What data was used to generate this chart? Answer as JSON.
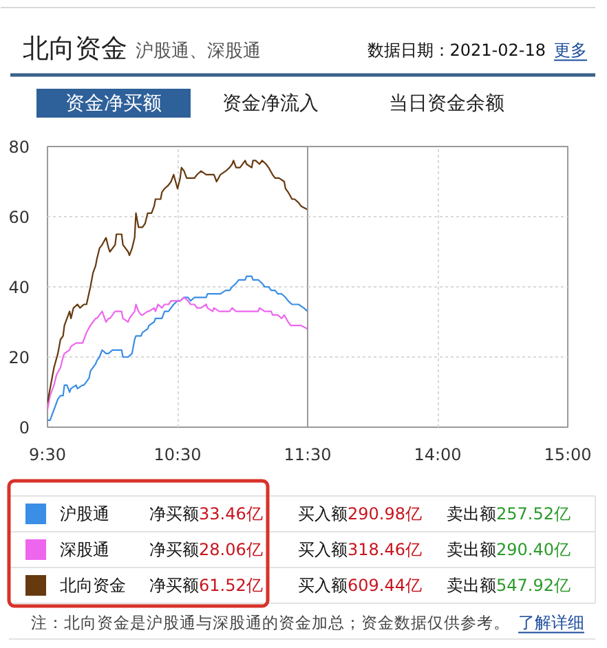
{
  "chart_data": [
    {
      "type": "line",
      "title": "北向资金",
      "subtitle": "沪股通、深股通",
      "xlim": [
        9.5,
        11.5
      ],
      "xticks": [
        {
          "value": 9.5,
          "label": "9:30"
        },
        {
          "value": 10.5,
          "label": "10:30"
        },
        {
          "value": 11.5,
          "label": "11:30"
        }
      ],
      "ylim": [
        0,
        80
      ],
      "yticks": [
        0,
        20,
        40,
        60,
        80
      ],
      "grid": true,
      "legend": "bottom",
      "series": [
        {
          "name": "沪股通",
          "color": "#3a8ee6",
          "x": [
            9.5,
            9.52,
            9.53,
            9.55,
            9.58,
            9.6,
            9.62,
            9.63,
            9.65,
            9.67,
            9.68,
            9.72,
            9.73,
            9.77,
            9.78,
            9.82,
            9.83,
            9.87,
            9.88,
            9.9,
            9.92,
            9.95,
            9.97,
            10,
            10.02,
            10.05,
            10.07,
            10.08,
            10.12,
            10.15,
            10.17,
            10.18,
            10.22,
            10.23,
            10.27,
            10.28,
            10.32,
            10.33,
            10.35,
            10.38,
            10.4,
            10.43,
            10.45,
            10.47,
            10.5,
            10.52,
            10.55,
            10.58,
            10.6,
            10.63,
            10.65,
            10.68,
            10.72,
            10.73,
            10.77,
            10.78,
            10.82,
            10.83,
            10.87,
            10.9,
            10.92,
            10.95,
            10.97,
            11,
            11.02,
            11.03,
            11.07,
            11.08,
            11.12,
            11.15,
            11.17,
            11.2,
            11.22,
            11.25,
            11.27,
            11.3,
            11.33,
            11.35,
            11.38,
            11.4,
            11.43,
            11.47,
            11.5
          ],
          "values": [
            2,
            2,
            3,
            5,
            8,
            9,
            9,
            12,
            12,
            10,
            11,
            12,
            11,
            12,
            12,
            14,
            16,
            18,
            19,
            20,
            22,
            21,
            21,
            22,
            22,
            22,
            22,
            20,
            20,
            21,
            25,
            26,
            26,
            27,
            28,
            29,
            30,
            31,
            31,
            31,
            33,
            33,
            34,
            35,
            36,
            36,
            37,
            37,
            36,
            37,
            37,
            37,
            37,
            38,
            38,
            38,
            38,
            38,
            39,
            39,
            40,
            41,
            42,
            42,
            42,
            43,
            43,
            42,
            42,
            41,
            40,
            40,
            39,
            39,
            38,
            38,
            37,
            36,
            35,
            35,
            35,
            34,
            33
          ]
        },
        {
          "name": "深股通",
          "color": "#ee66ee",
          "x": [
            9.5,
            9.52,
            9.55,
            9.57,
            9.6,
            9.62,
            9.63,
            9.67,
            9.68,
            9.72,
            9.73,
            9.77,
            9.78,
            9.8,
            9.83,
            9.85,
            9.87,
            9.88,
            9.9,
            9.92,
            9.95,
            9.97,
            9.98,
            10.02,
            10.03,
            10.07,
            10.08,
            10.12,
            10.13,
            10.17,
            10.18,
            10.2,
            10.22,
            10.23,
            10.27,
            10.28,
            10.32,
            10.33,
            10.35,
            10.38,
            10.4,
            10.43,
            10.45,
            10.47,
            10.5,
            10.52,
            10.55,
            10.58,
            10.6,
            10.63,
            10.65,
            10.68,
            10.72,
            10.73,
            10.77,
            10.78,
            10.82,
            10.83,
            10.87,
            10.9,
            10.92,
            10.95,
            10.97,
            11,
            11.03,
            11.05,
            11.08,
            11.12,
            11.13,
            11.17,
            11.18,
            11.22,
            11.23,
            11.27,
            11.3,
            11.32,
            11.35,
            11.37,
            11.4,
            11.43,
            11.45,
            11.5
          ],
          "values": [
            5,
            9,
            12,
            15,
            17,
            20,
            21,
            22,
            23,
            24,
            24,
            24,
            25,
            27,
            29,
            30,
            31,
            31,
            32,
            33,
            30,
            31,
            31,
            33,
            33,
            33,
            31,
            30,
            31,
            33,
            35,
            33,
            32,
            32,
            33,
            33,
            34,
            33,
            35,
            34,
            35,
            35,
            36,
            36,
            36,
            36,
            37,
            36,
            35,
            35,
            34,
            34,
            35,
            34,
            33,
            34,
            33,
            33,
            33,
            33,
            34,
            33,
            33,
            33,
            33,
            33,
            33,
            33,
            34,
            33,
            33,
            33,
            32,
            32,
            31,
            32,
            30,
            29,
            29,
            29,
            29,
            28
          ]
        },
        {
          "name": "北向资金",
          "color": "#66390f",
          "x": [
            9.5,
            9.53,
            9.55,
            9.58,
            9.6,
            9.62,
            9.63,
            9.65,
            9.67,
            9.68,
            9.7,
            9.73,
            9.75,
            9.78,
            9.8,
            9.83,
            9.85,
            9.87,
            9.88,
            9.9,
            9.92,
            9.95,
            9.97,
            9.98,
            10.02,
            10.03,
            10.07,
            10.08,
            10.12,
            10.13,
            10.15,
            10.17,
            10.18,
            10.2,
            10.23,
            10.25,
            10.27,
            10.3,
            10.32,
            10.33,
            10.35,
            10.37,
            10.38,
            10.4,
            10.43,
            10.45,
            10.47,
            10.5,
            10.52,
            10.53,
            10.55,
            10.57,
            10.6,
            10.63,
            10.65,
            10.68,
            10.72,
            10.75,
            10.78,
            10.8,
            10.83,
            10.87,
            10.9,
            10.92,
            10.93,
            10.95,
            10.98,
            11.02,
            11.03,
            11.07,
            11.08,
            11.1,
            11.13,
            11.15,
            11.18,
            11.2,
            11.23,
            11.25,
            11.28,
            11.32,
            11.33,
            11.35,
            11.38,
            11.4,
            11.43,
            11.45,
            11.5
          ],
          "values": [
            7,
            13,
            17,
            21,
            25,
            26,
            29,
            31,
            33,
            31,
            34,
            35,
            34,
            35,
            35,
            40,
            44,
            46,
            48,
            51,
            52,
            54,
            51,
            50,
            52,
            55,
            55,
            52,
            50,
            49,
            51,
            54,
            61,
            57,
            57,
            58,
            61,
            61,
            63,
            65,
            65,
            65,
            67,
            68,
            69,
            70,
            72,
            68,
            71,
            74,
            73,
            71,
            71,
            71,
            72,
            73,
            72,
            72,
            72,
            70,
            72,
            73,
            74,
            75,
            76,
            74,
            74,
            76,
            75,
            74,
            76,
            76,
            75,
            76,
            75,
            74,
            72,
            71,
            71,
            70,
            68,
            67,
            65,
            65,
            64,
            63,
            62
          ]
        }
      ],
      "annotations": [
        "数据日期：2021-02-18",
        "更多",
        "资金净买额",
        "资金净流入",
        "当日资金余额",
        "净买额33.46亿",
        "买入额290.98亿",
        "卖出额257.52亿",
        "净买额28.06亿",
        "买入额318.46亿",
        "卖出额290.40亿",
        "净买额61.52亿",
        "买入额609.44亿",
        "卖出额547.92亿",
        "注：北向资金是沪股通与深股通的资金加总；资金数据仅供参考。",
        "了解详细"
      ]
    },
    {
      "type": "line",
      "xlim": [
        13,
        15
      ],
      "xticks": [
        {
          "value": 14,
          "label": "14:00"
        },
        {
          "value": 15,
          "label": "15:00"
        }
      ],
      "ylim": [
        0,
        80
      ],
      "yticks": [
        0,
        20,
        40,
        60,
        80
      ],
      "grid": true,
      "tick_labels": "x"
    }
  ]
}
